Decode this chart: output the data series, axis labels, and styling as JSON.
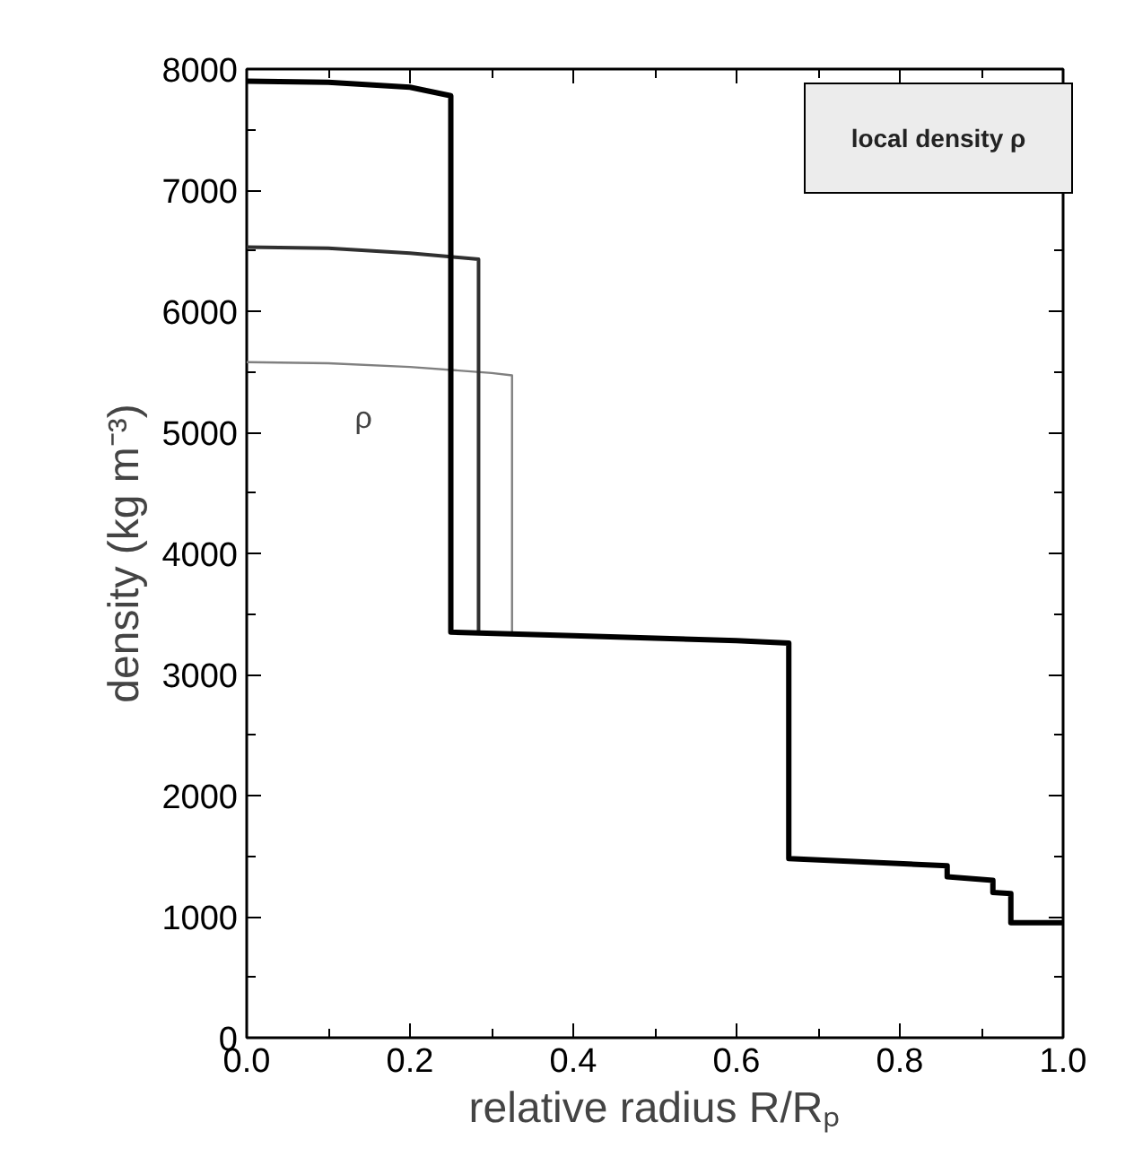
{
  "chart_data": {
    "type": "line",
    "xlabel": "relative radius R/Rₚ",
    "ylabel": "density (kg m⁻³)",
    "xlim": [
      0,
      1
    ],
    "ylim": [
      0,
      8000
    ],
    "xticks": [
      {
        "value": 0,
        "label": "0.0"
      },
      {
        "value": 0.1,
        "label": null
      },
      {
        "value": 0.2,
        "label": "0.2"
      },
      {
        "value": 0.3,
        "label": null
      },
      {
        "value": 0.4,
        "label": "0.4"
      },
      {
        "value": 0.5,
        "label": null
      },
      {
        "value": 0.6,
        "label": "0.6"
      },
      {
        "value": 0.7,
        "label": null
      },
      {
        "value": 0.8,
        "label": "0.8"
      },
      {
        "value": 0.9,
        "label": null
      },
      {
        "value": 1,
        "label": "1.0"
      }
    ],
    "yticks": [
      0,
      {
        "value": 500,
        "label": null
      },
      1000,
      {
        "value": 1500,
        "label": null
      },
      2000,
      {
        "value": 2500,
        "label": null
      },
      3000,
      {
        "value": 3500,
        "label": null
      },
      4000,
      {
        "value": 4500,
        "label": null
      },
      5000,
      {
        "value": 5500,
        "label": null
      },
      6000,
      {
        "value": 6500,
        "label": null
      },
      7000,
      {
        "value": 7500,
        "label": null
      },
      8000
    ],
    "grid": false,
    "marker": "none",
    "line_style": "solid",
    "series": [
      {
        "color": "#808080",
        "x": [
          0,
          0.1,
          0.2,
          0.3,
          0.325,
          0.325
        ],
        "values": [
          5580,
          5570,
          5540,
          5490,
          5470,
          3330
        ]
      },
      {
        "color": "#303030",
        "x": [
          0,
          0.1,
          0.2,
          0.25,
          0.284,
          0.284
        ],
        "values": [
          6530,
          6520,
          6480,
          6450,
          6430,
          3340
        ]
      },
      {
        "color": "#000000",
        "x": [
          0,
          0.1,
          0.2,
          0.25,
          0.25,
          0.4,
          0.5,
          0.6,
          0.664,
          0.664,
          0.858,
          0.858,
          0.914,
          0.914,
          0.936,
          0.936,
          1
        ],
        "values": [
          7900,
          7890,
          7850,
          7780,
          3350,
          3320,
          3300,
          3280,
          3260,
          1480,
          1420,
          1330,
          1300,
          1200,
          1190,
          950,
          950
        ]
      }
    ],
    "annotations": [
      "ρ",
      "local density ρ"
    ]
  }
}
